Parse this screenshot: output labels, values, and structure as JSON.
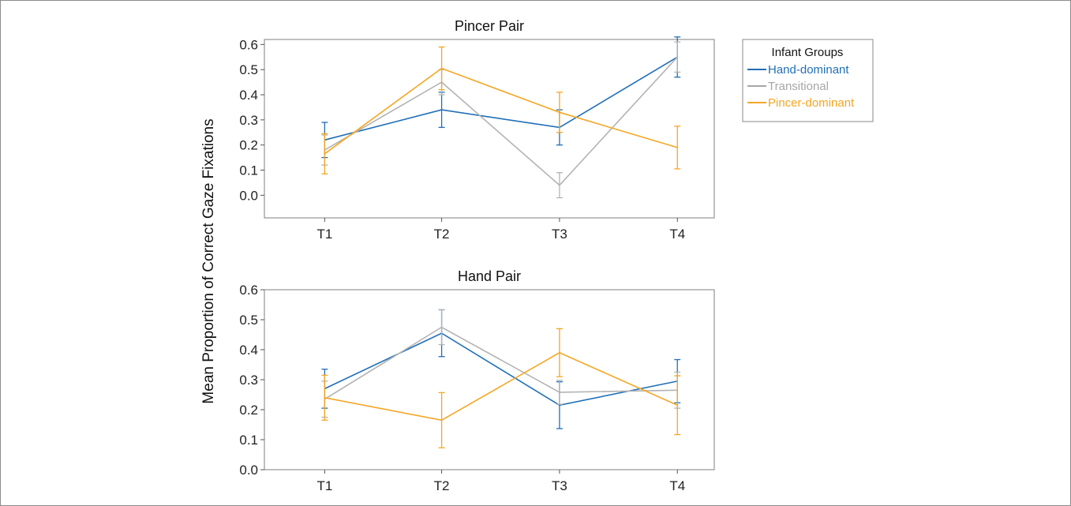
{
  "ylabel": "Mean Proportion of Correct Gaze Fixations",
  "colors": {
    "hand": "#1f6fb8",
    "trans": "#b3b3b3",
    "pincer": "#f5a623"
  },
  "legend": {
    "title": "Infant Groups",
    "items": [
      {
        "label": "Hand-dominant",
        "color": "#1f6fb8"
      },
      {
        "label": "Transitional",
        "color": "#a6a6a6"
      },
      {
        "label": "Pincer-dominant",
        "color": "#f5a623"
      }
    ]
  },
  "chart_data": [
    {
      "type": "line",
      "title": "Pincer Pair",
      "categories": [
        "T1",
        "T2",
        "T3",
        "T4"
      ],
      "yticks": [
        "0.0",
        "0.1",
        "0.2",
        "0.3",
        "0.4",
        "0.5",
        "0.6"
      ],
      "ylim": [
        -0.09,
        0.62
      ],
      "series": [
        {
          "name": "Hand-dominant",
          "color": "#1f6fb8",
          "values": [
            0.22,
            0.34,
            0.27,
            0.55
          ],
          "err": [
            0.07,
            0.07,
            0.07,
            0.08
          ]
        },
        {
          "name": "Transitional",
          "color": "#b3b3b3",
          "values": [
            0.18,
            0.45,
            0.04,
            0.55
          ],
          "err": [
            0.06,
            0.05,
            0.05,
            0.06
          ]
        },
        {
          "name": "Pincer-dominant",
          "color": "#f5a623",
          "values": [
            0.165,
            0.505,
            0.33,
            0.19
          ],
          "err": [
            0.08,
            0.085,
            0.08,
            0.085
          ]
        }
      ]
    },
    {
      "type": "line",
      "title": "Hand Pair",
      "categories": [
        "T1",
        "T2",
        "T3",
        "T4"
      ],
      "yticks": [
        "0.0",
        "0.1",
        "0.2",
        "0.3",
        "0.4",
        "0.5",
        "0.6"
      ],
      "ylim": [
        0,
        0.6
      ],
      "series": [
        {
          "name": "Hand-dominant",
          "color": "#1f6fb8",
          "values": [
            0.27,
            0.455,
            0.215,
            0.295
          ],
          "err": [
            0.065,
            0.078,
            0.078,
            0.072
          ]
        },
        {
          "name": "Transitional",
          "color": "#b3b3b3",
          "values": [
            0.235,
            0.475,
            0.258,
            0.265
          ],
          "err": [
            0.06,
            0.058,
            0.04,
            0.06
          ]
        },
        {
          "name": "Pincer-dominant",
          "color": "#f5a623",
          "values": [
            0.24,
            0.165,
            0.39,
            0.215
          ],
          "err": [
            0.075,
            0.092,
            0.08,
            0.098
          ]
        }
      ]
    }
  ]
}
